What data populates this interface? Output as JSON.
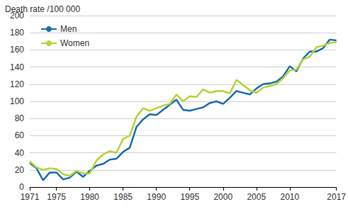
{
  "chart_data": {
    "type": "line",
    "ylabel": "Death rate /100 000",
    "categories": [
      "1971",
      null,
      null,
      null,
      "1975",
      null,
      null,
      null,
      null,
      "1980",
      null,
      null,
      null,
      null,
      "1985",
      null,
      null,
      null,
      null,
      "1990",
      null,
      null,
      null,
      null,
      "1995",
      null,
      null,
      null,
      null,
      "2000",
      null,
      null,
      null,
      null,
      "2005",
      null,
      null,
      null,
      null,
      "2010",
      null,
      null,
      null,
      null,
      null,
      null,
      "2017"
    ],
    "series": [
      {
        "name": "Men",
        "color": "#1a6db2",
        "values": [
          28,
          22,
          8,
          17,
          17,
          9,
          11,
          18,
          12,
          19,
          25,
          27,
          32,
          33,
          41,
          46,
          70,
          79,
          85,
          84,
          90,
          96,
          102,
          90,
          89,
          91,
          93,
          98,
          100,
          97,
          104,
          112,
          110,
          108,
          115,
          120,
          121,
          123,
          129,
          141,
          135,
          150,
          158,
          158,
          162,
          172,
          171
        ]
      },
      {
        "name": "Women",
        "color": "#b5d334",
        "values": [
          30,
          23,
          20,
          22,
          21,
          15,
          13,
          19,
          16,
          16,
          31,
          38,
          42,
          40,
          56,
          60,
          82,
          92,
          89,
          92,
          95,
          97,
          108,
          100,
          106,
          105,
          114,
          110,
          112,
          112,
          109,
          125,
          119,
          113,
          110,
          116,
          118,
          120,
          127,
          136,
          137,
          149,
          152,
          163,
          165,
          168,
          169
        ]
      }
    ],
    "ylim": [
      0,
      200
    ],
    "yticks": [
      0,
      20,
      40,
      60,
      80,
      100,
      120,
      140,
      160,
      180,
      200
    ],
    "grid": true,
    "legend": "upper left"
  }
}
